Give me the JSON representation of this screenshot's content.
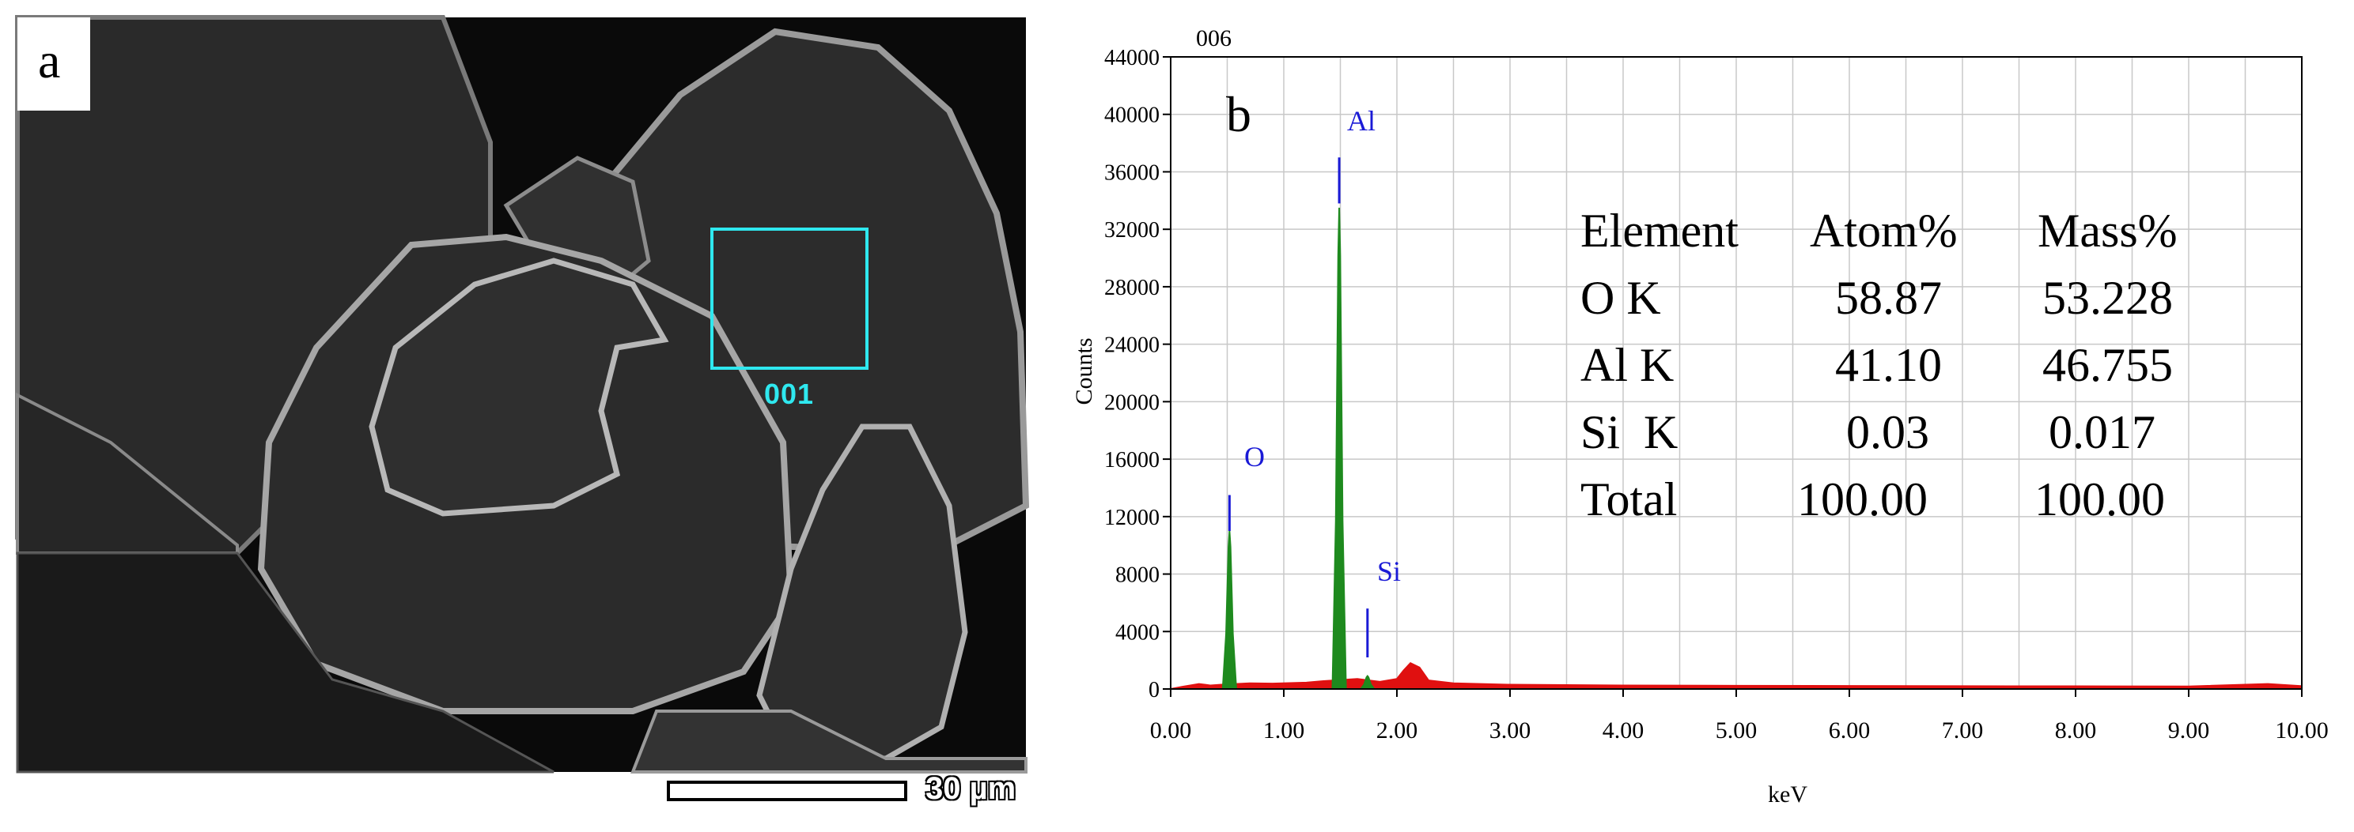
{
  "panel_a": {
    "letter": "a",
    "roi_label": "001",
    "scale_label": "30 µm"
  },
  "panel_b": {
    "letter": "b",
    "spectrum_id": "006",
    "peak_labels": [
      "O",
      "Al",
      "Si"
    ],
    "quant_table": {
      "header": [
        "Element",
        "Atom%",
        "Mass%"
      ],
      "rows": [
        [
          "O K",
          "58.87",
          "53.228"
        ],
        [
          "Al K",
          "41.10",
          "46.755"
        ],
        [
          "Si  K",
          "0.03",
          "0.017"
        ],
        [
          "Total",
          "100.00",
          "100.00"
        ]
      ]
    }
  },
  "colors": {
    "primary_peaks": "#1e8a1e",
    "background_signal": "#e01010",
    "peak_label": "#1a1ad6",
    "roi_box": "#2fe8ef"
  },
  "chart_data": {
    "type": "line",
    "xlabel": "keV",
    "ylabel": "Counts",
    "xlim": [
      0,
      10
    ],
    "ylim": [
      0,
      44000
    ],
    "grid": true,
    "x_ticks": [
      0,
      1,
      2,
      3,
      4,
      5,
      6,
      7,
      8,
      9,
      10
    ],
    "x_tick_labels": [
      "0.00",
      "1.00",
      "2.00",
      "3.00",
      "4.00",
      "5.00",
      "6.00",
      "7.00",
      "8.00",
      "9.00",
      "10.00"
    ],
    "y_ticks": [
      0,
      4000,
      8000,
      12000,
      16000,
      20000,
      24000,
      28000,
      32000,
      36000,
      40000,
      44000
    ],
    "y_tick_labels": [
      "0",
      "4000",
      "8000",
      "12000",
      "16000",
      "20000",
      "24000",
      "28000",
      "32000",
      "36000",
      "40000",
      "44000"
    ],
    "peaks": [
      {
        "label": "O",
        "energy": 0.52,
        "counts": 11000,
        "width": 0.03,
        "marker_top": 13500,
        "marker_bottom": 11000
      },
      {
        "label": "Al",
        "energy": 1.49,
        "counts": 33500,
        "width": 0.03,
        "marker_top": 37000,
        "marker_bottom": 33800
      },
      {
        "label": "Si",
        "energy": 1.74,
        "counts": 900,
        "width": 0.03,
        "marker_top": 5600,
        "marker_bottom": 2200
      }
    ],
    "background_points": [
      [
        0.0,
        0
      ],
      [
        0.1,
        150
      ],
      [
        0.25,
        350
      ],
      [
        0.35,
        250
      ],
      [
        0.45,
        300
      ],
      [
        0.7,
        400
      ],
      [
        0.9,
        380
      ],
      [
        1.2,
        450
      ],
      [
        1.35,
        550
      ],
      [
        1.65,
        700
      ],
      [
        1.85,
        500
      ],
      [
        2.0,
        700
      ],
      [
        2.06,
        1300
      ],
      [
        2.12,
        1800
      ],
      [
        2.2,
        1500
      ],
      [
        2.28,
        600
      ],
      [
        2.5,
        400
      ],
      [
        3.0,
        300
      ],
      [
        4.0,
        250
      ],
      [
        5.0,
        230
      ],
      [
        6.0,
        210
      ],
      [
        7.0,
        200
      ],
      [
        8.0,
        190
      ],
      [
        9.0,
        180
      ],
      [
        9.7,
        350
      ],
      [
        10.0,
        200
      ]
    ]
  }
}
